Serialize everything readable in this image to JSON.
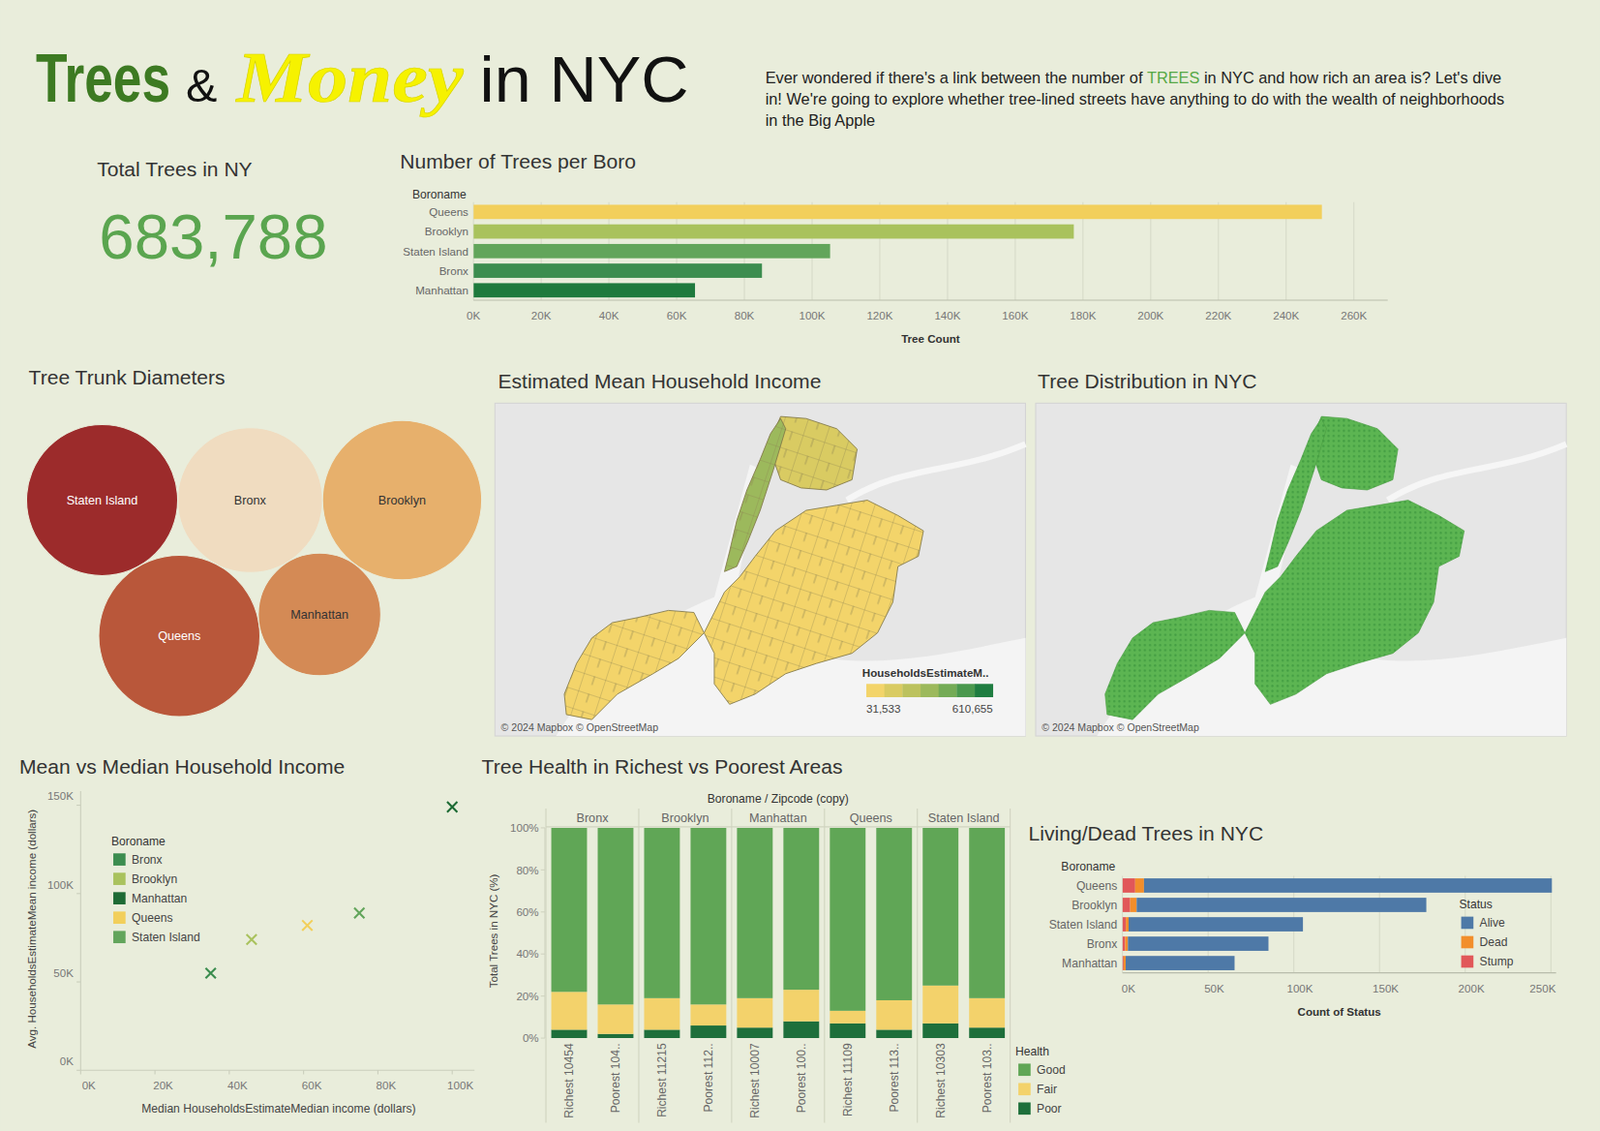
{
  "header": {
    "title_parts": [
      {
        "text": "Trees",
        "color": "#3d7a22"
      },
      {
        "text": "&",
        "color": "#111111"
      },
      {
        "text": "Money",
        "color": "#f6f200"
      },
      {
        "text": "in NYC",
        "color": "#111111"
      }
    ],
    "description": [
      [
        {
          "text": "Ever wondered if there's a link between the number of "
        },
        {
          "text": "TREES",
          "color": "#55a845"
        },
        {
          "text": " in NYC and how rich an area is? Let's dive"
        }
      ],
      [
        {
          "text": "in! We're going to explore whether tree-lined streets have anything to do with the wealth of neighborhoods"
        }
      ],
      [
        {
          "text": "in the Big Apple"
        }
      ]
    ]
  },
  "chart_data": [
    {
      "type": "kpi",
      "title": "Total Trees in NY",
      "values": [
        683788
      ],
      "value_labels": [
        "683,788"
      ],
      "color": "#5aa54f"
    },
    {
      "type": "bar",
      "orientation": "horizontal",
      "title": "Number of Trees per Boro",
      "ylabel": "Boroname",
      "xlabel": "Tree Count",
      "categories": [
        "Queens",
        "Brooklyn",
        "Staten Island",
        "Bronx",
        "Manhattan"
      ],
      "values": [
        250551,
        177293,
        105318,
        85203,
        65423
      ],
      "colors": [
        "#f2cf5b",
        "#a9c25d",
        "#62a55b",
        "#3c8d4f",
        "#1e7a3d"
      ],
      "xlim": [
        0,
        270000
      ],
      "xticks": [
        {
          "value": 0,
          "label": "0K"
        },
        {
          "value": 20000,
          "label": "20K"
        },
        {
          "value": 40000,
          "label": "40K"
        },
        {
          "value": 60000,
          "label": "60K"
        },
        {
          "value": 80000,
          "label": "80K"
        },
        {
          "value": 100000,
          "label": "100K"
        },
        {
          "value": 120000,
          "label": "120K"
        },
        {
          "value": 140000,
          "label": "140K"
        },
        {
          "value": 160000,
          "label": "160K"
        },
        {
          "value": 180000,
          "label": "180K"
        },
        {
          "value": 200000,
          "label": "200K"
        },
        {
          "value": 220000,
          "label": "220K"
        },
        {
          "value": 240000,
          "label": "240K"
        },
        {
          "value": 260000,
          "label": "260K"
        }
      ],
      "grid": true
    },
    {
      "type": "bubble",
      "title": "Tree Trunk Diameters",
      "categories": [
        "Staten Island",
        "Bronx",
        "Brooklyn",
        "Queens",
        "Manhattan"
      ],
      "values": [
        548,
        504,
        608,
        624,
        360
      ],
      "colors": [
        "#9c2b2b",
        "#f0dcc0",
        "#e7b06c",
        "#b9573a",
        "#d48a55"
      ]
    },
    {
      "type": "map",
      "title": "Estimated Mean Household Income",
      "colorbar": {
        "title": "HouseholdsEstimateM..",
        "range": [
          31533,
          610655
        ],
        "ticks": [
          {
            "value": 31533,
            "label": "31,533"
          },
          {
            "value": 610655,
            "label": "610,655"
          }
        ],
        "colors": [
          "#f3d46a",
          "#d9cb62",
          "#bcc25e",
          "#9cb95c",
          "#74ab56",
          "#4a984e",
          "#1f7d41"
        ]
      },
      "attribution": "© 2024 Mapbox © OpenStreetMap"
    },
    {
      "type": "map",
      "title": "Tree Distribution in NYC",
      "color": "#5cb552",
      "attribution": "© 2024 Mapbox © OpenStreetMap"
    },
    {
      "type": "scatter",
      "title": "Mean vs Median Household Income",
      "marker": "x",
      "xlabel": "Median HouseholdsEstimateMedian income (dollars)",
      "ylabel": "Avg. HouseholdsEstimateMean income (dollars)",
      "legend_title": "Boroname",
      "series": [
        {
          "name": "Bronx",
          "color": "#3c8d4f",
          "x": [
            35000
          ],
          "values": [
            55000
          ]
        },
        {
          "name": "Brooklyn",
          "color": "#a9c25d",
          "x": [
            46000
          ],
          "values": [
            74000
          ]
        },
        {
          "name": "Manhattan",
          "color": "#1e6b35",
          "x": [
            100000
          ],
          "values": [
            149000
          ]
        },
        {
          "name": "Queens",
          "color": "#f2cf5b",
          "x": [
            61000
          ],
          "values": [
            82000
          ]
        },
        {
          "name": "Staten Island",
          "color": "#62a55b",
          "x": [
            75000
          ],
          "values": [
            89000
          ]
        }
      ],
      "xlim": [
        0,
        106000
      ],
      "xticks": [
        {
          "value": 0,
          "label": "0K"
        },
        {
          "value": 20000,
          "label": "20K"
        },
        {
          "value": 40000,
          "label": "40K"
        },
        {
          "value": 60000,
          "label": "60K"
        },
        {
          "value": 80000,
          "label": "80K"
        },
        {
          "value": 100000,
          "label": "100K"
        }
      ],
      "ylim": [
        0,
        158000
      ],
      "yticks": [
        {
          "value": 0,
          "label": "0K"
        },
        {
          "value": 50000,
          "label": "50K"
        },
        {
          "value": 100000,
          "label": "100K"
        },
        {
          "value": 150000,
          "label": "150K"
        }
      ]
    },
    {
      "type": "bar",
      "stacked": true,
      "title": "Tree Health in Richest vs Poorest Areas",
      "xlabel": "Boroname / Zipcode (copy)",
      "ylabel": "Total Trees in NYC (%)",
      "legend_title": "Health",
      "groups": [
        "Bronx",
        "Brooklyn",
        "Manhattan",
        "Queens",
        "Staten Island"
      ],
      "categories": [
        "Richest 10454",
        "Poorest 104..",
        "Richest 11215",
        "Poorest 112..",
        "Richest 10007",
        "Poorest 100..",
        "Richest 11109",
        "Poorest 113..",
        "Richest 10303",
        "Poorest 103.."
      ],
      "series": [
        {
          "name": "Good",
          "color": "#60a656",
          "values": [
            78,
            84,
            81,
            84,
            81,
            77,
            87,
            82,
            75,
            81
          ]
        },
        {
          "name": "Fair",
          "color": "#f3d26b",
          "values": [
            18,
            14,
            15,
            10,
            14,
            15,
            6,
            14,
            18,
            14
          ]
        },
        {
          "name": "Poor",
          "color": "#1e6f3b",
          "values": [
            4,
            2,
            4,
            6,
            5,
            8,
            7,
            4,
            7,
            5
          ]
        }
      ],
      "ylim": [
        0,
        100
      ],
      "yticks": [
        {
          "value": 0,
          "label": "0%"
        },
        {
          "value": 20,
          "label": "20%"
        },
        {
          "value": 40,
          "label": "40%"
        },
        {
          "value": 60,
          "label": "60%"
        },
        {
          "value": 80,
          "label": "80%"
        },
        {
          "value": 100,
          "label": "100%"
        }
      ]
    },
    {
      "type": "bar",
      "orientation": "horizontal",
      "stacked": true,
      "title": "Living/Dead Trees in NYC",
      "ylabel": "Boroname",
      "xlabel": "Count of Status",
      "legend_title": "Status",
      "categories": [
        "Queens",
        "Brooklyn",
        "Staten Island",
        "Bronx",
        "Manhattan"
      ],
      "series": [
        {
          "name": "Alive",
          "color": "#4e79a7",
          "values": [
            237974,
            168993,
            101718,
            82003,
            63523
          ]
        },
        {
          "name": "Dead",
          "color": "#f28e2b",
          "values": [
            5142,
            3800,
            1600,
            1600,
            1200
          ]
        },
        {
          "name": "Stump",
          "color": "#e15759",
          "values": [
            7435,
            4500,
            2000,
            1600,
            700
          ]
        }
      ],
      "xlim": [
        0,
        253000
      ],
      "xticks": [
        {
          "value": 0,
          "label": "0K"
        },
        {
          "value": 50000,
          "label": "50K"
        },
        {
          "value": 100000,
          "label": "100K"
        },
        {
          "value": 150000,
          "label": "150K"
        },
        {
          "value": 200000,
          "label": "200K"
        },
        {
          "value": 250000,
          "label": "250K"
        }
      ],
      "grid": true
    }
  ]
}
